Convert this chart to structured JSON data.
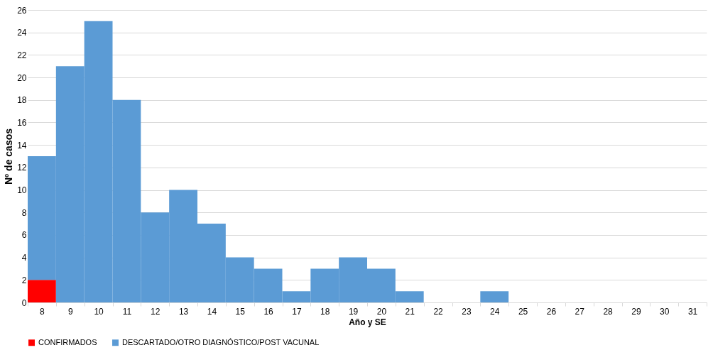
{
  "chart_data": {
    "type": "bar",
    "stacked": true,
    "xlabel": "Año y SE",
    "ylabel": "Nº de casos",
    "categories": [
      "8",
      "9",
      "10",
      "11",
      "12",
      "13",
      "14",
      "15",
      "16",
      "17",
      "18",
      "19",
      "20",
      "21",
      "22",
      "23",
      "24",
      "25",
      "26",
      "27",
      "28",
      "29",
      "30",
      "31"
    ],
    "series": [
      {
        "name": "CONFIRMADOS",
        "color": "#ff0000",
        "values": [
          2,
          0,
          0,
          0,
          0,
          0,
          0,
          0,
          0,
          0,
          0,
          0,
          0,
          0,
          0,
          0,
          0,
          0,
          0,
          0,
          0,
          0,
          0,
          0
        ]
      },
      {
        "name": "DESCARTADO/OTRO DIAGNÓSTICO/POST VACUNAL",
        "color": "#5b9bd5",
        "values": [
          11,
          21,
          25,
          18,
          8,
          10,
          7,
          4,
          3,
          1,
          3,
          4,
          3,
          1,
          0,
          0,
          1,
          0,
          0,
          0,
          0,
          0,
          0,
          0
        ]
      }
    ],
    "ylim": [
      0,
      26
    ],
    "yticks": [
      0,
      2,
      4,
      6,
      8,
      10,
      12,
      14,
      16,
      18,
      20,
      22,
      24,
      26
    ],
    "grid": "y",
    "legend": "bottom"
  }
}
